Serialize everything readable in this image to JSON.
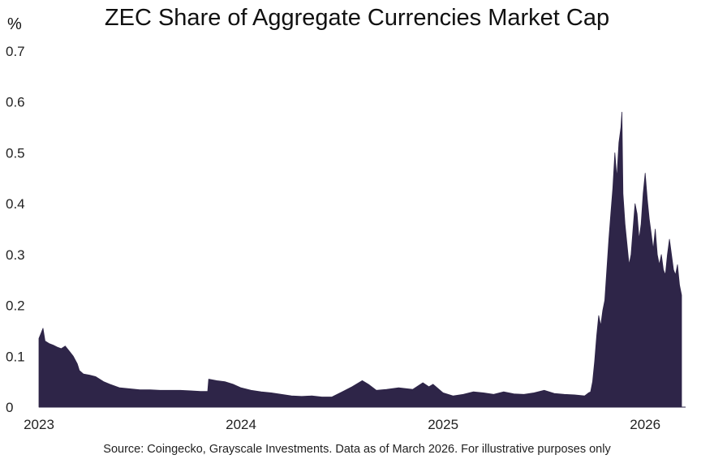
{
  "chart_data": {
    "type": "area",
    "title": "ZEC Share of Aggregate Currencies Market Cap",
    "ylabel": "%",
    "xlabel": "",
    "source": "Source: Coingecko, Grayscale Investments. Data as of March 2026. For illustrative purposes only",
    "xlim": [
      2023.0,
      2026.2
    ],
    "ylim": [
      0,
      0.7
    ],
    "yticks": [
      0,
      0.1,
      0.2,
      0.3,
      0.4,
      0.5,
      0.6,
      0.7
    ],
    "ytick_labels": [
      "0",
      "0.1",
      "0.2",
      "0.3",
      "0.4",
      "0.5",
      "0.6",
      "0.7"
    ],
    "xticks": [
      2023,
      2024,
      2025,
      2026
    ],
    "xtick_labels": [
      "2023",
      "2024",
      "2025",
      "2026"
    ],
    "grid": false,
    "legend": "none",
    "series": [
      {
        "name": "ZEC share",
        "color": "#2e2548",
        "x": [
          2023.0,
          2023.01,
          2023.02,
          2023.03,
          2023.05,
          2023.07,
          2023.09,
          2023.11,
          2023.13,
          2023.15,
          2023.17,
          2023.19,
          2023.2,
          2023.22,
          2023.25,
          2023.28,
          2023.32,
          2023.35,
          2023.4,
          2023.45,
          2023.5,
          2023.55,
          2023.6,
          2023.65,
          2023.7,
          2023.75,
          2023.8,
          2023.835,
          2023.84,
          2023.88,
          2023.92,
          2023.96,
          2024.0,
          2024.05,
          2024.1,
          2024.15,
          2024.2,
          2024.25,
          2024.3,
          2024.35,
          2024.4,
          2024.45,
          2024.5,
          2024.55,
          2024.6,
          2024.63,
          2024.67,
          2024.72,
          2024.78,
          2024.85,
          2024.9,
          2024.93,
          2024.95,
          2025.0,
          2025.05,
          2025.1,
          2025.15,
          2025.2,
          2025.25,
          2025.3,
          2025.35,
          2025.4,
          2025.45,
          2025.5,
          2025.55,
          2025.6,
          2025.65,
          2025.7,
          2025.72,
          2025.73,
          2025.74,
          2025.75,
          2025.76,
          2025.77,
          2025.78,
          2025.79,
          2025.8,
          2025.81,
          2025.82,
          2025.83,
          2025.84,
          2025.85,
          2025.86,
          2025.87,
          2025.88,
          2025.885,
          2025.89,
          2025.9,
          2025.91,
          2025.92,
          2025.93,
          2025.94,
          2025.95,
          2025.96,
          2025.97,
          2025.98,
          2025.99,
          2026.0,
          2026.01,
          2026.02,
          2026.03,
          2026.04,
          2026.05,
          2026.06,
          2026.07,
          2026.08,
          2026.09,
          2026.1,
          2026.11,
          2026.12,
          2026.13,
          2026.14,
          2026.15,
          2026.16,
          2026.17,
          2026.18
        ],
        "values": [
          0.135,
          0.145,
          0.155,
          0.13,
          0.125,
          0.122,
          0.118,
          0.115,
          0.12,
          0.11,
          0.1,
          0.085,
          0.072,
          0.065,
          0.063,
          0.06,
          0.05,
          0.045,
          0.038,
          0.036,
          0.034,
          0.034,
          0.033,
          0.033,
          0.033,
          0.032,
          0.031,
          0.031,
          0.055,
          0.052,
          0.05,
          0.045,
          0.038,
          0.033,
          0.03,
          0.028,
          0.025,
          0.022,
          0.021,
          0.022,
          0.02,
          0.02,
          0.03,
          0.04,
          0.052,
          0.045,
          0.033,
          0.035,
          0.038,
          0.035,
          0.048,
          0.04,
          0.045,
          0.028,
          0.022,
          0.025,
          0.03,
          0.028,
          0.025,
          0.03,
          0.026,
          0.025,
          0.028,
          0.033,
          0.027,
          0.025,
          0.024,
          0.022,
          0.028,
          0.03,
          0.05,
          0.09,
          0.14,
          0.18,
          0.16,
          0.19,
          0.21,
          0.27,
          0.33,
          0.38,
          0.43,
          0.5,
          0.45,
          0.52,
          0.55,
          0.58,
          0.42,
          0.36,
          0.32,
          0.28,
          0.3,
          0.35,
          0.4,
          0.38,
          0.33,
          0.36,
          0.42,
          0.46,
          0.41,
          0.37,
          0.34,
          0.31,
          0.35,
          0.3,
          0.28,
          0.3,
          0.27,
          0.26,
          0.3,
          0.33,
          0.3,
          0.27,
          0.26,
          0.28,
          0.24,
          0.22
        ]
      }
    ]
  }
}
